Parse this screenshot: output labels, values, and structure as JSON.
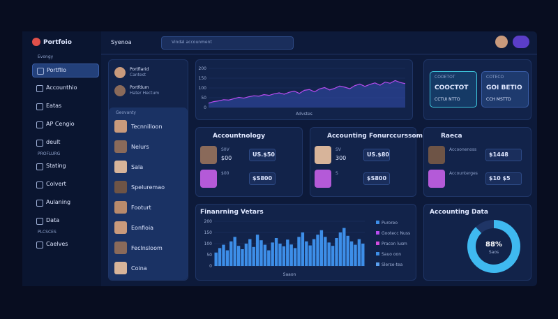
{
  "sidebar": {
    "brand": "Portfoio",
    "section_label": "Evongy",
    "items": [
      "Portfllo",
      "Accounthio",
      "Eatas",
      "AP Cengio",
      "deult"
    ],
    "group_label": "PROFLURG",
    "group_items": [
      "Stating",
      "Colvert",
      "Aulaning",
      "Data"
    ],
    "group2_label": "PLCSCES",
    "group2_items": [
      "Caelves"
    ]
  },
  "topbar": {
    "search": "Syenoa",
    "dropdown": "Vindal accounment"
  },
  "contacts": {
    "pinned": [
      {
        "name": "Portfiarid",
        "sub": "Cantest"
      },
      {
        "name": "Portfdum",
        "sub": "Hater Hectum"
      }
    ],
    "header": "Geovanty",
    "list": [
      "Tecnnilloon",
      "Nelurs",
      "Sala",
      "Speluremao",
      "Footurt",
      "Eonfioia",
      "Feclnsloom",
      "Coina"
    ]
  },
  "top_chart": {
    "type": "area",
    "x_label": "Advstes",
    "ylim": [
      0,
      200
    ],
    "yticks": [
      0,
      50,
      100,
      150,
      200
    ],
    "color": "#b84cf0",
    "values": [
      22,
      30,
      34,
      40,
      38,
      45,
      52,
      48,
      55,
      60,
      58,
      66,
      62,
      70,
      75,
      68,
      78,
      84,
      72,
      88,
      92,
      80,
      95,
      102,
      90,
      98,
      110,
      104,
      96,
      112,
      120,
      108,
      118,
      126,
      114,
      130,
      124,
      138,
      128,
      122
    ]
  },
  "summary": {
    "cards": [
      {
        "tag": "COOETOT",
        "title": "COOCTOT",
        "sub": "CCTUI NTTO"
      },
      {
        "tag": "COTECO",
        "title": "GOI BETIO",
        "sub": "CCH MSTTD"
      }
    ]
  },
  "cards": [
    {
      "title": "Accountnology",
      "rows": [
        {
          "tag": "S0V",
          "amount": "$00",
          "value": "US.$50"
        },
        {
          "tag": "$00",
          "amount": "",
          "value": "$S800"
        }
      ]
    },
    {
      "title": "Accounting Fonurccurssom",
      "rows": [
        {
          "tag": "SV",
          "amount": "300",
          "value": "US.$80"
        },
        {
          "tag": "S",
          "amount": "",
          "value": "$S800"
        }
      ]
    },
    {
      "title": "Raeca",
      "rows": [
        {
          "tag": "Accoonenoss",
          "amount": "",
          "value": "$1448"
        },
        {
          "tag": "Accounterges",
          "amount": "",
          "value": "$10 $5"
        }
      ]
    }
  ],
  "bar_chart": {
    "type": "bar",
    "title": "Finanrning Vetars",
    "x_label": "Saaon",
    "ylim": [
      0,
      200
    ],
    "yticks": [
      0,
      50,
      100,
      150,
      200
    ],
    "color": "#3d8ee8",
    "values": [
      60,
      80,
      95,
      70,
      110,
      130,
      90,
      75,
      100,
      120,
      85,
      140,
      115,
      95,
      70,
      105,
      125,
      100,
      88,
      118,
      96,
      80,
      130,
      150,
      110,
      92,
      120,
      140,
      160,
      130,
      105,
      90,
      125,
      150,
      170,
      135,
      110,
      95,
      120,
      100
    ],
    "legend": [
      "Puroreo",
      "Gootecc Nuss",
      "Pracon lusm",
      "Sauo oon",
      "Slerse-tea"
    ]
  },
  "donut": {
    "type": "pie",
    "title": "Accounting Data",
    "ylim": [
      0,
      100
    ],
    "values": [
      88
    ],
    "value_labels": [
      "88%"
    ],
    "sub": "Saos"
  }
}
